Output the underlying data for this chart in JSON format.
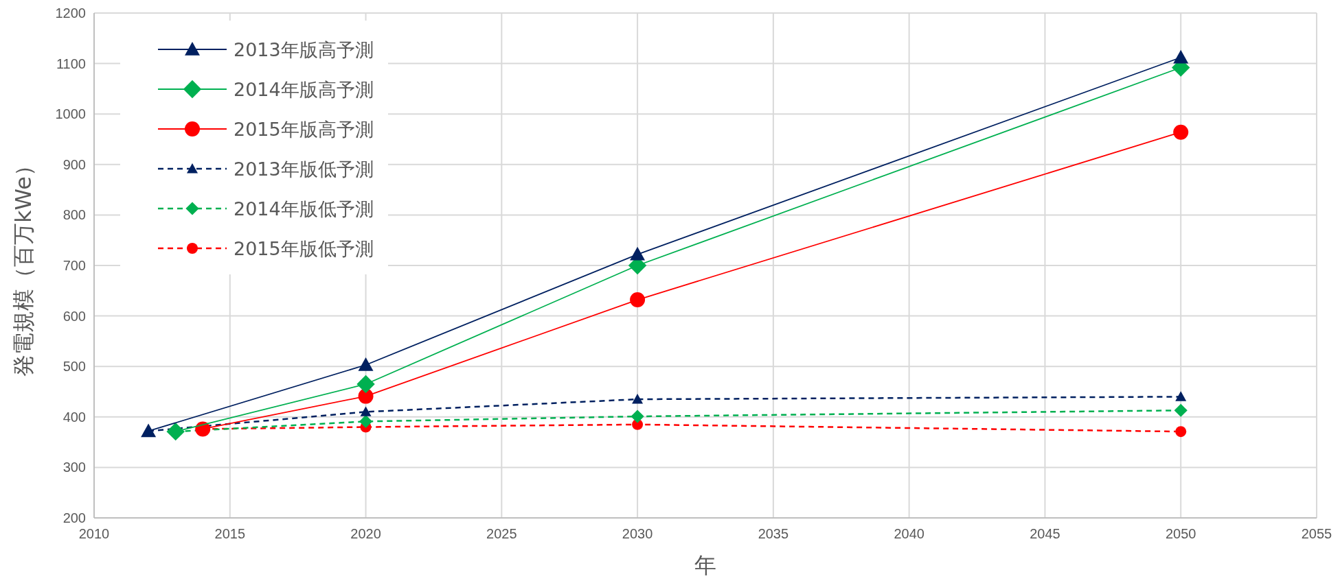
{
  "chart_data": {
    "type": "line",
    "xlabel": "年",
    "ylabel": "発電規模（百万kWe）",
    "xlim": [
      2010,
      2055
    ],
    "xticks": [
      2010,
      2015,
      2020,
      2025,
      2030,
      2035,
      2040,
      2045,
      2050,
      2055
    ],
    "ylim": [
      200,
      1200
    ],
    "yticks": [
      200,
      300,
      400,
      500,
      600,
      700,
      800,
      900,
      1000,
      1100,
      1200
    ],
    "grid": true,
    "legend": "top left",
    "series": [
      {
        "name": "2013年版高予測",
        "color": "#002060",
        "marker": "triangle",
        "line_style": "solid",
        "x": [
          2012,
          2020,
          2030,
          2050
        ],
        "values": [
          372,
          503,
          722,
          1112
        ]
      },
      {
        "name": "2014年版高予測",
        "color": "#00b050",
        "marker": "diamond",
        "line_style": "solid",
        "x": [
          2013,
          2020,
          2030,
          2050
        ],
        "values": [
          371,
          465,
          700,
          1092
        ]
      },
      {
        "name": "2015年版高予測",
        "color": "#ff0000",
        "marker": "circle",
        "line_style": "solid",
        "x": [
          2014,
          2020,
          2030,
          2050
        ],
        "values": [
          376,
          441,
          632,
          964
        ]
      },
      {
        "name": "2013年版低予測",
        "color": "#002060",
        "marker": "triangle",
        "line_style": "dashed",
        "x": [
          2012,
          2020,
          2030,
          2050
        ],
        "values": [
          372,
          410,
          435,
          440
        ]
      },
      {
        "name": "2014年版低予測",
        "color": "#00b050",
        "marker": "diamond",
        "line_style": "dashed",
        "x": [
          2013,
          2020,
          2030,
          2050
        ],
        "values": [
          371,
          391,
          401,
          413
        ]
      },
      {
        "name": "2015年版低予測",
        "color": "#ff0000",
        "marker": "circle",
        "line_style": "dashed",
        "x": [
          2014,
          2020,
          2030,
          2050
        ],
        "values": [
          376,
          380,
          385,
          371
        ]
      }
    ]
  }
}
